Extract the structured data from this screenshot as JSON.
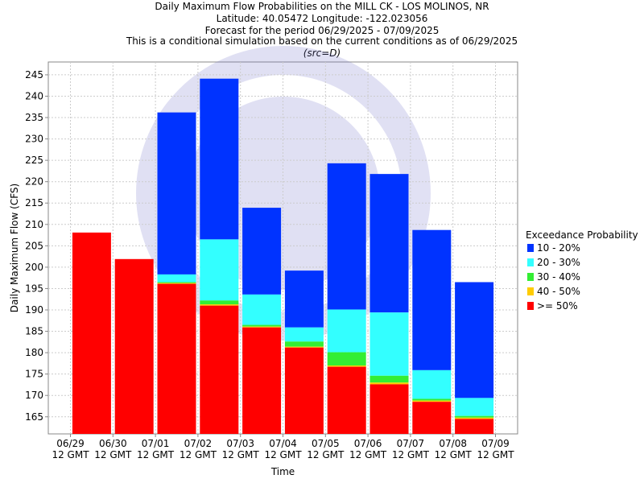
{
  "chart_data": {
    "type": "bar",
    "stacked": true,
    "title_lines": [
      "Daily Maximum Flow Probabilities on the MILL CK - LOS MOLINOS, NR",
      "Latitude: 40.05472 Longitude: -122.023056",
      "Forecast for the period 06/29/2025 - 07/09/2025",
      "This is a conditional simulation based on the current conditions as of 06/29/2025",
      "(src=D)"
    ],
    "xlabel": "Time",
    "ylabel": "Daily Maximum Flow (CFS)",
    "ylim": [
      161,
      248
    ],
    "yticks": [
      165,
      170,
      175,
      180,
      185,
      190,
      195,
      200,
      205,
      210,
      215,
      220,
      225,
      230,
      235,
      240,
      245
    ],
    "x_ticks": [
      {
        "date": "06/29",
        "time": "12 GMT"
      },
      {
        "date": "06/30",
        "time": "12 GMT"
      },
      {
        "date": "07/01",
        "time": "12 GMT"
      },
      {
        "date": "07/02",
        "time": "12 GMT"
      },
      {
        "date": "07/03",
        "time": "12 GMT"
      },
      {
        "date": "07/04",
        "time": "12 GMT"
      },
      {
        "date": "07/05",
        "time": "12 GMT"
      },
      {
        "date": "07/06",
        "time": "12 GMT"
      },
      {
        "date": "07/07",
        "time": "12 GMT"
      },
      {
        "date": "07/08",
        "time": "12 GMT"
      },
      {
        "date": "07/09",
        "time": "12 GMT"
      }
    ],
    "grid": true,
    "legend_title": "Exceedance Probability",
    "legend_position": "right",
    "series": [
      {
        "name": "10 - 20%",
        "color": "#0033ff",
        "top": [
          null,
          null,
          236.2,
          244.1,
          213.9,
          199.2,
          224.3,
          221.8,
          208.7,
          196.5
        ]
      },
      {
        "name": "20 - 30%",
        "color": "#33ffff",
        "top": [
          null,
          null,
          198.3,
          206.5,
          193.6,
          185.9,
          190.1,
          189.4,
          175.9,
          169.4
        ]
      },
      {
        "name": "30 - 40%",
        "color": "#33ee33",
        "top": [
          null,
          null,
          196.5,
          192.2,
          186.5,
          182.6,
          180.1,
          174.6,
          169.2,
          165.2
        ]
      },
      {
        "name": "40 - 50%",
        "color": "#ffcc00",
        "top": [
          null,
          null,
          196.3,
          191.3,
          186.1,
          181.4,
          177.0,
          173.0,
          168.8,
          164.8
        ]
      },
      {
        "name": ">= 50%",
        "color": "#ff0000",
        "top": [
          208.1,
          201.9,
          196.1,
          191.0,
          185.9,
          181.2,
          176.7,
          172.6,
          168.5,
          164.5
        ]
      }
    ]
  }
}
